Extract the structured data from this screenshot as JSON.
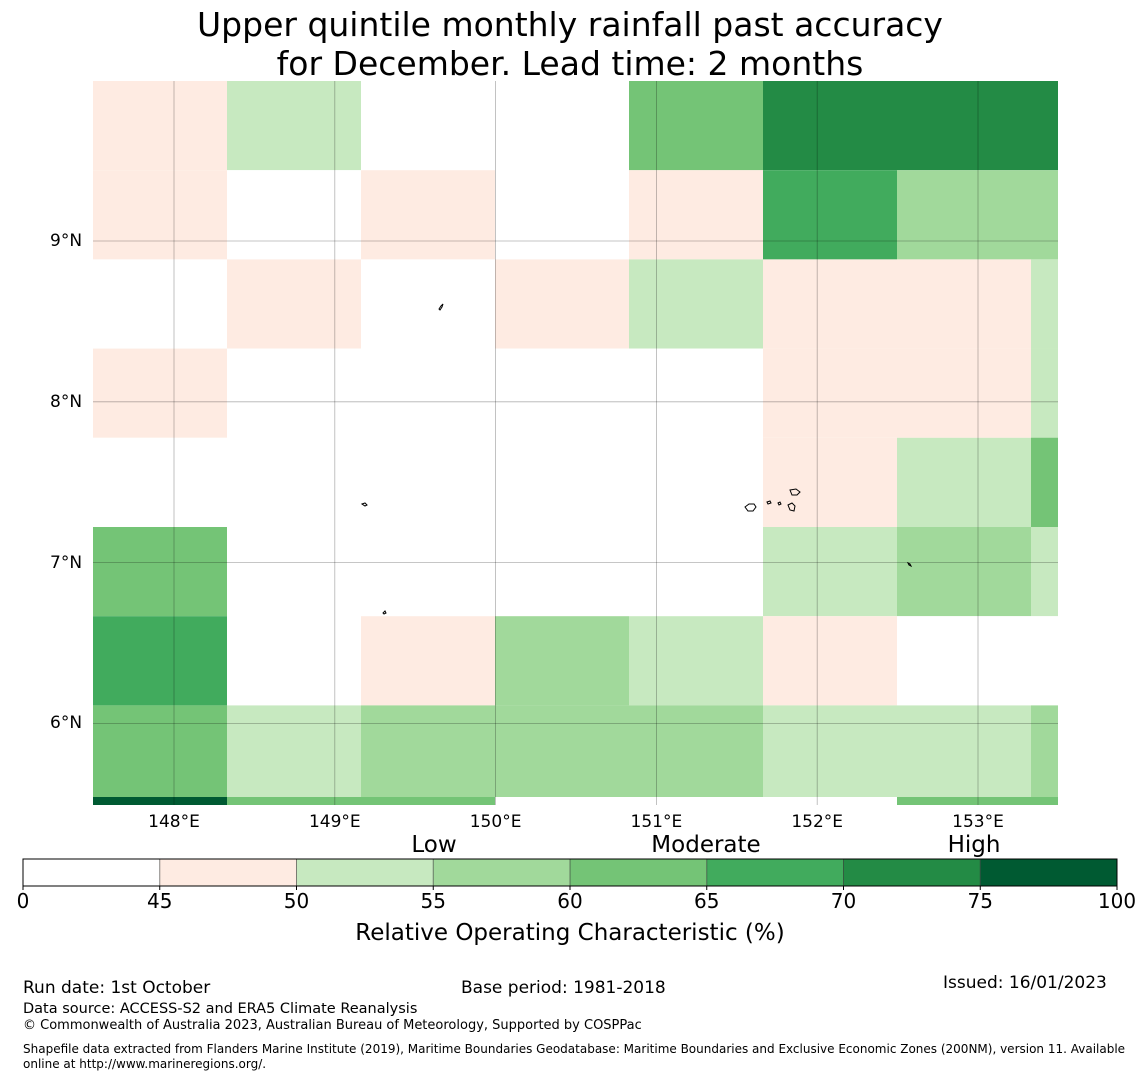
{
  "title": {
    "line1": "Upper quintile monthly rainfall past accuracy",
    "line2": "for December. Lead time: 2 months"
  },
  "map": {
    "lat_labels": [
      "9°N",
      "8°N",
      "7°N",
      "6°N"
    ],
    "lon_labels": [
      "148°E",
      "149°E",
      "150°E",
      "151°E",
      "152°E",
      "153°E"
    ],
    "lat_values": [
      9,
      8,
      7,
      6
    ],
    "lon_values": [
      148,
      149,
      150,
      151,
      152,
      153
    ],
    "lat_range": [
      5.5,
      10.0
    ],
    "lon_range": [
      147.5,
      153.5
    ],
    "cell_size_deg": [
      0.833,
      0.556
    ],
    "cell_values_rows_top_to_bottom": [
      [
        47,
        52,
        0,
        0,
        62,
        72,
        72,
        72
      ],
      [
        47,
        0,
        47,
        0,
        47,
        67,
        57,
        57
      ],
      [
        0,
        47,
        0,
        47,
        52,
        47,
        47,
        52
      ],
      [
        47,
        0,
        0,
        0,
        0,
        47,
        47,
        52
      ],
      [
        0,
        0,
        0,
        0,
        0,
        47,
        52,
        62
      ],
      [
        62,
        0,
        0,
        0,
        0,
        52,
        57,
        52
      ],
      [
        67,
        0,
        47,
        57,
        52,
        47,
        0,
        0
      ],
      [
        62,
        52,
        57,
        57,
        57,
        52,
        52,
        57
      ]
    ],
    "bottom_strip_values": [
      77,
      62,
      62,
      0,
      0,
      0,
      62,
      62
    ],
    "land_color": "#000000"
  },
  "colorbar": {
    "category_labels": [
      "Low",
      "Moderate",
      "High"
    ],
    "tick_labels": [
      "0",
      "45",
      "50",
      "55",
      "60",
      "65",
      "70",
      "75",
      "100"
    ],
    "bins": [
      0,
      45,
      50,
      55,
      60,
      65,
      70,
      75,
      100
    ],
    "colors": [
      "#ffffff",
      "#feebe2",
      "#c7e9c0",
      "#a1d99b",
      "#74c476",
      "#41ab5d",
      "#238b45",
      "#005a32"
    ],
    "label": "Relative Operating Characteristic (%)"
  },
  "footer": {
    "run_date": "Run date: 1st October",
    "base_period": "Base period: 1981-2018",
    "issued": "Issued: 16/01/2023",
    "data_source": "Data source: ACCESS-S2 and ERA5 Climate Reanalysis",
    "copyright": "© Commonwealth of Australia 2023, Australian Bureau of Meteorology, Supported by COSPPac",
    "shapefile": "Shapefile data extracted from Flanders Marine Institute (2019), Maritime Boundaries Geodatabase: Maritime Boundaries and Exclusive Economic Zones (200NM), version 11. Available online at http://www.marineregions.org/."
  }
}
